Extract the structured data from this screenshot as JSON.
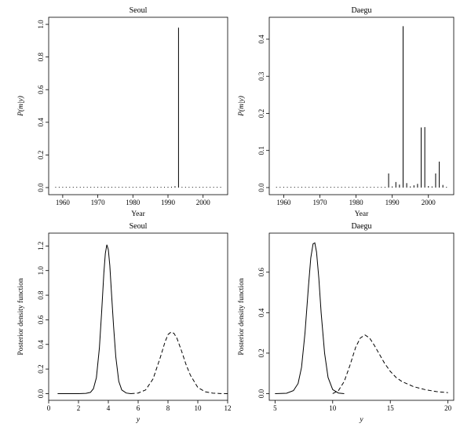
{
  "chart_data": [
    {
      "type": "bar",
      "style": "spike",
      "title": "Seoul",
      "xlabel": "Year",
      "ylabel": "P(m|y)",
      "xlim": [
        1956,
        2007
      ],
      "ylim": [
        0,
        1.0
      ],
      "xticks": [
        1960,
        1970,
        1980,
        1990,
        2000
      ],
      "yticks": [
        0.0,
        0.2,
        0.4,
        0.6,
        0.8,
        1.0
      ],
      "yticklabels": [
        "0.0",
        "0.2",
        "0.4",
        "0.6",
        "0.8",
        "1.0"
      ],
      "grid": false,
      "x": [
        1958,
        1959,
        1960,
        1961,
        1962,
        1963,
        1964,
        1965,
        1966,
        1967,
        1968,
        1969,
        1970,
        1971,
        1972,
        1973,
        1974,
        1975,
        1976,
        1977,
        1978,
        1979,
        1980,
        1981,
        1982,
        1983,
        1984,
        1985,
        1986,
        1987,
        1988,
        1989,
        1990,
        1991,
        1992,
        1993,
        1994,
        1995,
        1996,
        1997,
        1998,
        1999,
        2000,
        2001,
        2002,
        2003,
        2004,
        2005
      ],
      "values": [
        0,
        0,
        0,
        0,
        0,
        0,
        0,
        0,
        0,
        0,
        0,
        0,
        0,
        0,
        0,
        0,
        0,
        0,
        0,
        0,
        0,
        0,
        0,
        0,
        0,
        0,
        0,
        0,
        0,
        0,
        0,
        0,
        0,
        0.005,
        0.008,
        0.98,
        0.004,
        0,
        0,
        0,
        0,
        0,
        0,
        0,
        0,
        0,
        0,
        0
      ]
    },
    {
      "type": "bar",
      "style": "spike",
      "title": "Daegu",
      "xlabel": "Year",
      "ylabel": "P(m|y)",
      "xlim": [
        1956,
        2007
      ],
      "ylim": [
        0,
        0.44
      ],
      "xticks": [
        1960,
        1970,
        1980,
        1990,
        2000
      ],
      "yticks": [
        0.0,
        0.1,
        0.2,
        0.3,
        0.4
      ],
      "yticklabels": [
        "0.0",
        "0.1",
        "0.2",
        "0.3",
        "0.4"
      ],
      "grid": false,
      "x": [
        1958,
        1959,
        1960,
        1961,
        1962,
        1963,
        1964,
        1965,
        1966,
        1967,
        1968,
        1969,
        1970,
        1971,
        1972,
        1973,
        1974,
        1975,
        1976,
        1977,
        1978,
        1979,
        1980,
        1981,
        1982,
        1983,
        1984,
        1985,
        1986,
        1987,
        1988,
        1989,
        1990,
        1991,
        1992,
        1993,
        1994,
        1995,
        1996,
        1997,
        1998,
        1999,
        2000,
        2001,
        2002,
        2003,
        2004,
        2005
      ],
      "values": [
        0,
        0,
        0,
        0,
        0,
        0,
        0,
        0,
        0,
        0,
        0,
        0,
        0,
        0,
        0,
        0,
        0,
        0,
        0,
        0,
        0,
        0,
        0,
        0,
        0,
        0,
        0,
        0,
        0,
        0,
        0.002,
        0.038,
        0.003,
        0.015,
        0.008,
        0.435,
        0.012,
        0.003,
        0.006,
        0.01,
        0.162,
        0.163,
        0.004,
        0.003,
        0.038,
        0.07,
        0.007,
        0.002
      ]
    },
    {
      "type": "line",
      "title": "Seoul",
      "xlabel": "y",
      "ylabel": "Posterior density function",
      "xlim": [
        0,
        12
      ],
      "ylim": [
        0,
        1.25
      ],
      "xticks": [
        0,
        2,
        4,
        6,
        8,
        10,
        12
      ],
      "yticks": [
        0.0,
        0.2,
        0.4,
        0.6,
        0.8,
        1.0,
        1.2
      ],
      "yticklabels": [
        "0.0",
        "0.2",
        "0.4",
        "0.6",
        "0.8",
        "1.0",
        "1.2"
      ],
      "grid": false,
      "series": [
        {
          "style": "solid",
          "x": [
            0.6,
            1.0,
            1.5,
            2.0,
            2.5,
            2.8,
            3.0,
            3.2,
            3.4,
            3.55,
            3.7,
            3.8,
            3.9,
            4.0,
            4.1,
            4.2,
            4.35,
            4.5,
            4.7,
            4.9,
            5.2,
            5.5
          ],
          "values": [
            0.0,
            0.0,
            0.0,
            0.0,
            0.002,
            0.01,
            0.04,
            0.13,
            0.37,
            0.66,
            0.98,
            1.14,
            1.21,
            1.17,
            1.04,
            0.84,
            0.55,
            0.3,
            0.1,
            0.03,
            0.005,
            0.0
          ]
        },
        {
          "style": "dashed",
          "x": [
            5.5,
            6.0,
            6.5,
            7.0,
            7.5,
            7.8,
            8.0,
            8.2,
            8.4,
            8.6,
            8.9,
            9.2,
            9.5,
            10.0,
            10.5,
            11.0,
            11.5,
            12.0
          ],
          "values": [
            0.0,
            0.005,
            0.03,
            0.12,
            0.3,
            0.42,
            0.48,
            0.5,
            0.49,
            0.45,
            0.35,
            0.24,
            0.15,
            0.05,
            0.015,
            0.004,
            0.001,
            0.0
          ]
        }
      ]
    },
    {
      "type": "line",
      "title": "Daegu",
      "xlabel": "y",
      "ylabel": "Posterior density function",
      "xlim": [
        4.5,
        20.5
      ],
      "ylim": [
        0,
        0.76
      ],
      "xticks": [
        5,
        10,
        15,
        20
      ],
      "yticks": [
        0.0,
        0.2,
        0.4,
        0.6
      ],
      "yticklabels": [
        "0.0",
        "0.2",
        "0.4",
        "0.6"
      ],
      "grid": false,
      "series": [
        {
          "style": "solid",
          "x": [
            5.0,
            6.0,
            6.6,
            7.0,
            7.3,
            7.6,
            7.9,
            8.1,
            8.3,
            8.45,
            8.6,
            8.8,
            9.0,
            9.3,
            9.6,
            10.0,
            10.5,
            11.0
          ],
          "values": [
            0.0,
            0.002,
            0.015,
            0.05,
            0.13,
            0.3,
            0.53,
            0.67,
            0.74,
            0.745,
            0.7,
            0.57,
            0.4,
            0.2,
            0.08,
            0.02,
            0.003,
            0.0
          ]
        },
        {
          "style": "dashed",
          "x": [
            10.0,
            10.5,
            11.0,
            11.5,
            12.0,
            12.4,
            12.8,
            13.2,
            13.6,
            14.0,
            14.5,
            15.0,
            15.5,
            16.0,
            17.0,
            18.0,
            19.0,
            20.0
          ],
          "values": [
            0.0,
            0.015,
            0.06,
            0.14,
            0.23,
            0.275,
            0.29,
            0.275,
            0.24,
            0.2,
            0.15,
            0.11,
            0.08,
            0.06,
            0.035,
            0.02,
            0.01,
            0.005
          ]
        }
      ]
    }
  ]
}
